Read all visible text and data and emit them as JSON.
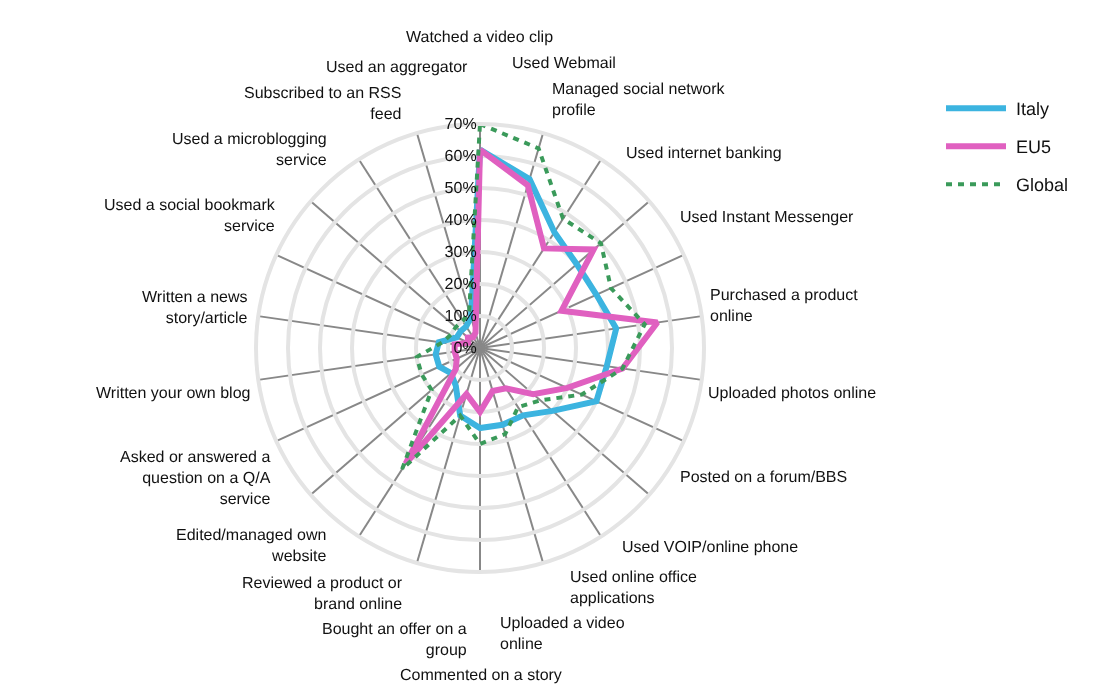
{
  "chart_data": {
    "type": "radar",
    "categories": [
      "Watched a video clip",
      "Used Webmail",
      "Managed social network profile",
      "Used internet banking",
      "Used Instant Messenger",
      "Purchased a product online",
      "Uploaded photos online",
      "Posted on a forum/BBS",
      "Used VOIP/online phone",
      "Used online office applications",
      "Uploaded a video online",
      "Commented on a story",
      "Bought an offer on a group",
      "Reviewed a product or brand online",
      "Edited/managed own website",
      "Asked or answered a question on a Q/A service",
      "Written your own blog",
      "Written a news story/article",
      "Used a social bookmark service",
      "Used a microblogging service",
      "Subscribed to an RSS feed",
      "Used an aggregator"
    ],
    "series": [
      {
        "name": "Italy",
        "color": "#3cb4e0",
        "values": [
          62,
          55,
          43,
          40,
          40,
          43,
          40,
          40,
          30,
          25,
          25,
          25,
          22,
          14,
          12,
          14,
          14,
          13,
          8,
          8,
          8,
          10
        ]
      },
      {
        "name": "EU5",
        "color": "#e060c0",
        "values": [
          62,
          53,
          37,
          47,
          28,
          56,
          45,
          30,
          22,
          15,
          14,
          20,
          15,
          43,
          10,
          8,
          8,
          8,
          4,
          5,
          4,
          5
        ]
      },
      {
        "name": "Global",
        "color": "#3a9a5a",
        "line_style": "dotted",
        "values": [
          70,
          65,
          48,
          50,
          45,
          52,
          45,
          35,
          25,
          22,
          28,
          30,
          22,
          45,
          20,
          20,
          20,
          12,
          10,
          10,
          10,
          12
        ]
      }
    ],
    "ylim": [
      0,
      70
    ],
    "yticks": [
      {
        "value": 0,
        "label": "0%"
      },
      {
        "value": 10,
        "label": "10%"
      },
      {
        "value": 20,
        "label": "20%"
      },
      {
        "value": 30,
        "label": "30%"
      },
      {
        "value": 40,
        "label": "40%"
      },
      {
        "value": 50,
        "label": "50%"
      },
      {
        "value": 60,
        "label": "60%"
      },
      {
        "value": 70,
        "label": "70%"
      }
    ],
    "grid": true,
    "legend": "top right",
    "line_style": "solid",
    "marker": "none"
  }
}
